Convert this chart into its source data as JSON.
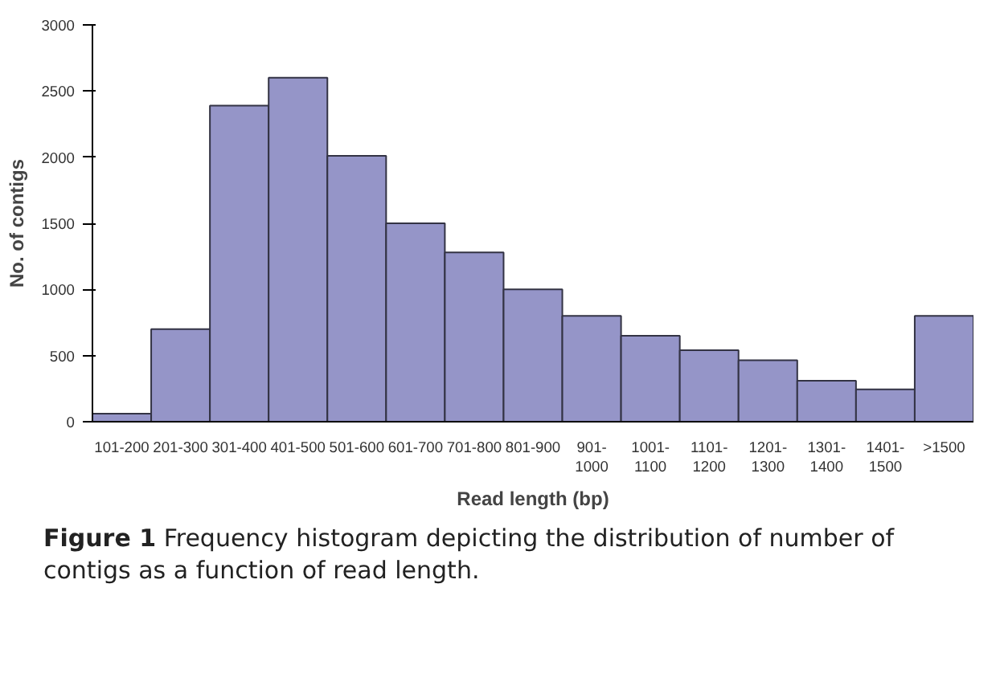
{
  "chart_data": {
    "type": "bar",
    "xlabel": "Read length (bp)",
    "ylabel": "No. of contigs",
    "categories": [
      "101-200",
      "201-300",
      "301-400",
      "401-500",
      "501-600",
      "601-700",
      "701-800",
      "801-900",
      "901-1000",
      "1001-1100",
      "1101-1200",
      "1201-1300",
      "1301-1400",
      "1401-1500",
      ">1500"
    ],
    "values": [
      60,
      700,
      2390,
      2600,
      2010,
      1500,
      1280,
      1000,
      800,
      650,
      540,
      465,
      310,
      245,
      800
    ],
    "color": "#9595c8",
    "ylim": [
      0,
      3000
    ],
    "yticks": [
      0,
      500,
      1000,
      1500,
      2000,
      2500,
      3000
    ],
    "grid": false,
    "annotations": [
      "Figure 1 Frequency histogram depicting the distribution of number of contigs as a function of read length."
    ]
  }
}
